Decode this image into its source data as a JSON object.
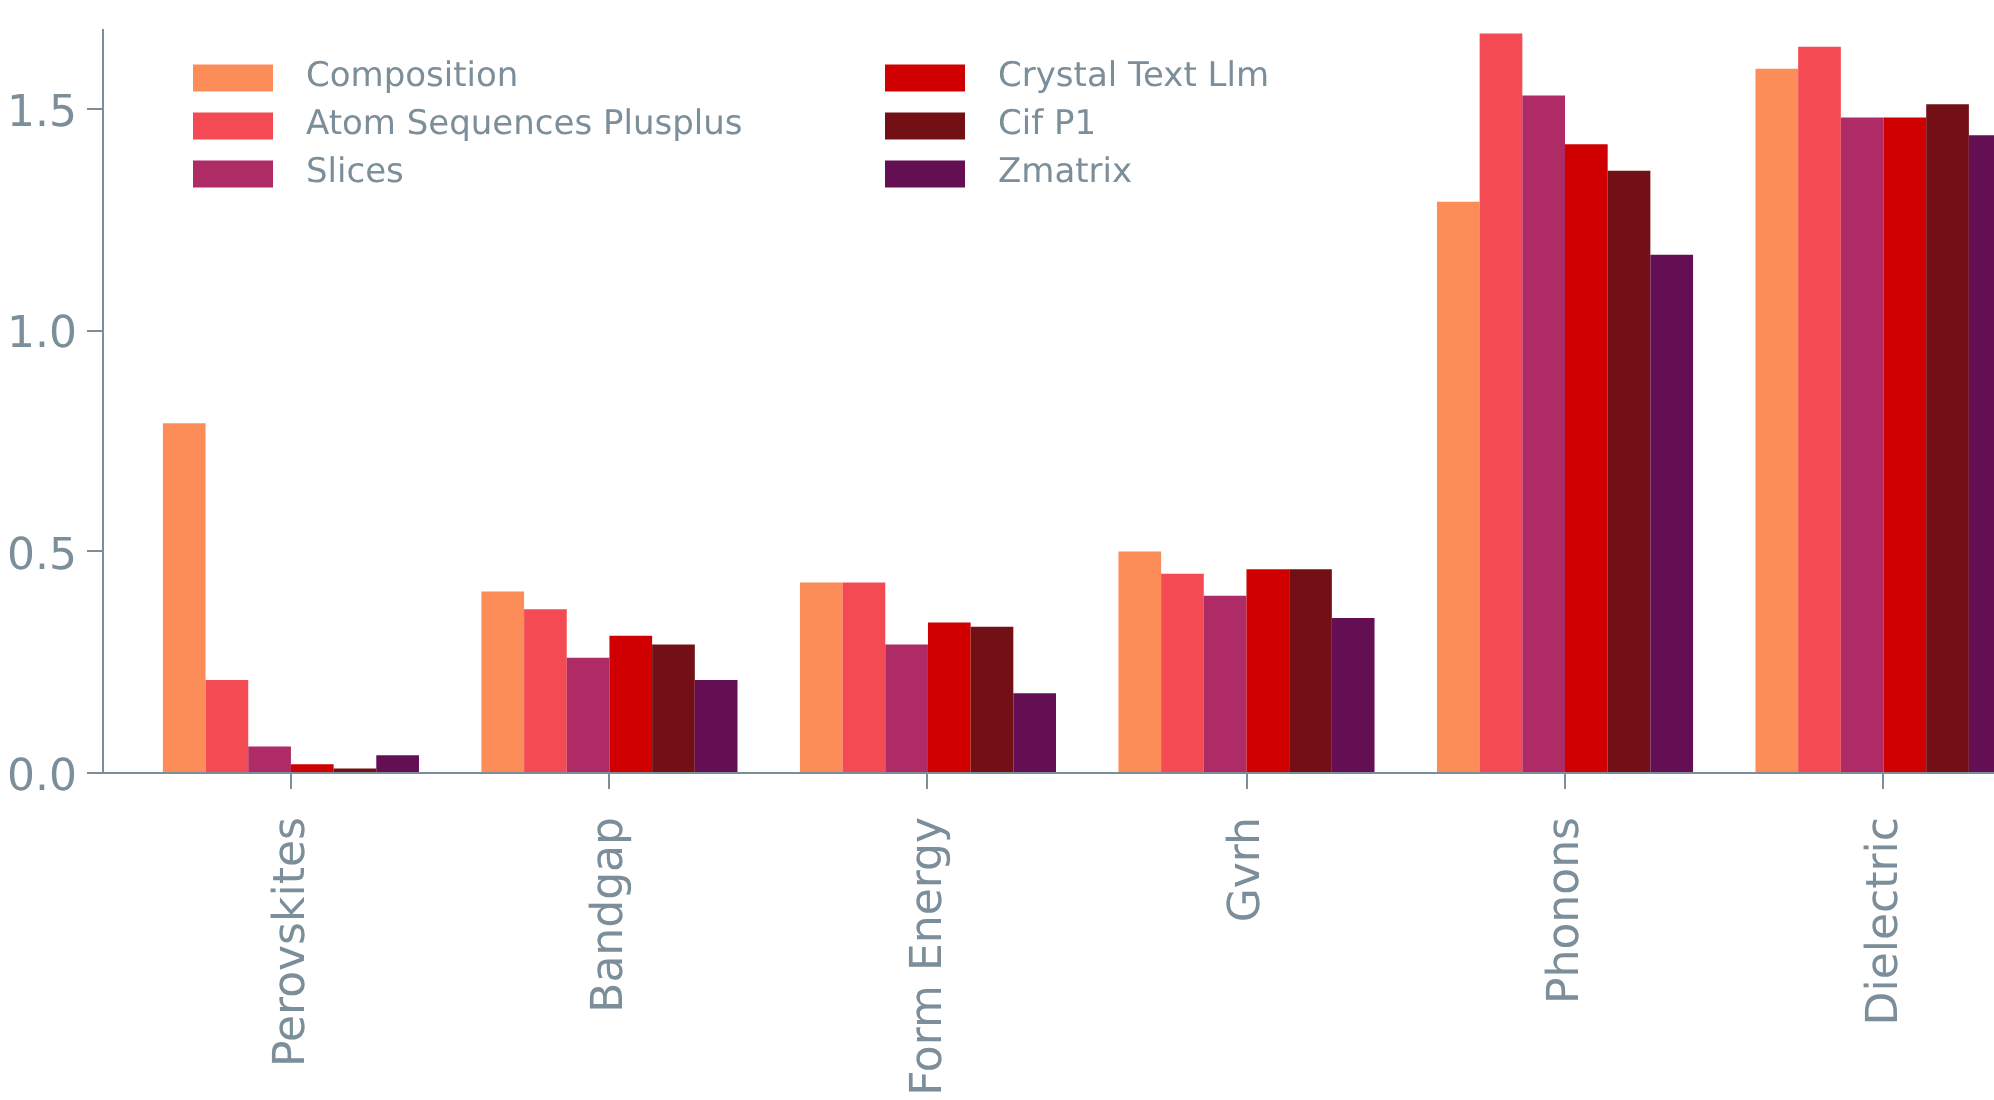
{
  "chart_data": {
    "type": "bar",
    "categories": [
      "Perovskites",
      "Bandgap",
      "Form Energy",
      "Gvrh",
      "Phonons",
      "Dielectric"
    ],
    "series": [
      {
        "name": "Composition",
        "color": "#fc8d59",
        "values": [
          0.79,
          0.41,
          0.43,
          0.5,
          1.29,
          1.59
        ]
      },
      {
        "name": "Atom Sequences Plusplus",
        "color": "#f34a53",
        "values": [
          0.21,
          0.37,
          0.43,
          0.45,
          1.67,
          1.64
        ]
      },
      {
        "name": "Slices",
        "color": "#ae2b66",
        "values": [
          0.06,
          0.26,
          0.29,
          0.4,
          1.53,
          1.48
        ]
      },
      {
        "name": "Crystal Text Llm",
        "color": "#d10000",
        "values": [
          0.02,
          0.31,
          0.34,
          0.46,
          1.42,
          1.48
        ]
      },
      {
        "name": "Cif P1",
        "color": "#721015",
        "values": [
          0.01,
          0.29,
          0.33,
          0.46,
          1.36,
          1.51
        ]
      },
      {
        "name": "Zmatrix",
        "color": "#640f54",
        "values": [
          0.04,
          0.21,
          0.18,
          0.35,
          1.17,
          1.44
        ]
      }
    ],
    "ylim": [
      0,
      1.68
    ],
    "yticks": [
      {
        "value": 0,
        "label": "0.0"
      },
      0.5,
      {
        "value": 1,
        "label": "1.0"
      },
      1.5
    ],
    "grid": false,
    "legend": "top left"
  }
}
